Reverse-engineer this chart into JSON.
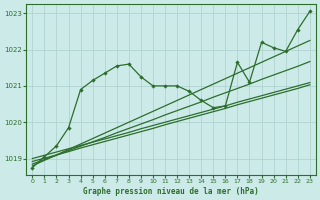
{
  "title": "Graphe pression niveau de la mer (hPa)",
  "bg_color": "#cceae8",
  "grid_color": "#aacfcd",
  "line_color": "#2d6e2d",
  "x_ticks": [
    0,
    1,
    2,
    3,
    4,
    5,
    6,
    7,
    8,
    9,
    10,
    11,
    12,
    13,
    14,
    15,
    16,
    17,
    18,
    19,
    20,
    21,
    22,
    23
  ],
  "y_ticks": [
    1019,
    1020,
    1021,
    1022,
    1023
  ],
  "ylim": [
    1018.55,
    1023.25
  ],
  "xlim": [
    -0.5,
    23.5
  ],
  "zigzag": [
    1018.75,
    1019.05,
    1019.35,
    1019.85,
    1020.9,
    1021.15,
    1021.35,
    1021.55,
    1021.6,
    1021.25,
    1021.0,
    1021.0,
    1021.0,
    1020.85,
    1020.6,
    1020.4,
    1020.45,
    1021.65,
    1021.1,
    1022.2,
    1022.05,
    1021.95,
    1022.55,
    1023.05
  ],
  "straight1": [
    1019.0,
    1019.09,
    1019.18,
    1019.27,
    1019.36,
    1019.45,
    1019.54,
    1019.63,
    1019.72,
    1019.82,
    1019.91,
    1020.0,
    1020.09,
    1020.18,
    1020.27,
    1020.36,
    1020.45,
    1020.55,
    1020.64,
    1020.73,
    1020.82,
    1020.91,
    1021.0,
    1021.09
  ],
  "straight2": [
    1018.92,
    1019.01,
    1019.1,
    1019.19,
    1019.29,
    1019.38,
    1019.47,
    1019.56,
    1019.65,
    1019.74,
    1019.83,
    1019.93,
    1020.02,
    1020.11,
    1020.2,
    1020.29,
    1020.38,
    1020.48,
    1020.57,
    1020.66,
    1020.75,
    1020.84,
    1020.93,
    1021.03
  ],
  "straight3": [
    1018.85,
    1018.97,
    1019.09,
    1019.22,
    1019.34,
    1019.46,
    1019.58,
    1019.71,
    1019.83,
    1019.95,
    1020.07,
    1020.2,
    1020.32,
    1020.44,
    1020.56,
    1020.69,
    1020.81,
    1020.93,
    1021.05,
    1021.18,
    1021.3,
    1021.42,
    1021.54,
    1021.67
  ],
  "straight4": [
    1018.8,
    1018.95,
    1019.1,
    1019.25,
    1019.4,
    1019.55,
    1019.7,
    1019.85,
    1020.0,
    1020.15,
    1020.3,
    1020.45,
    1020.6,
    1020.75,
    1020.9,
    1021.05,
    1021.2,
    1021.35,
    1021.5,
    1021.65,
    1021.8,
    1021.95,
    1022.1,
    1022.25
  ]
}
